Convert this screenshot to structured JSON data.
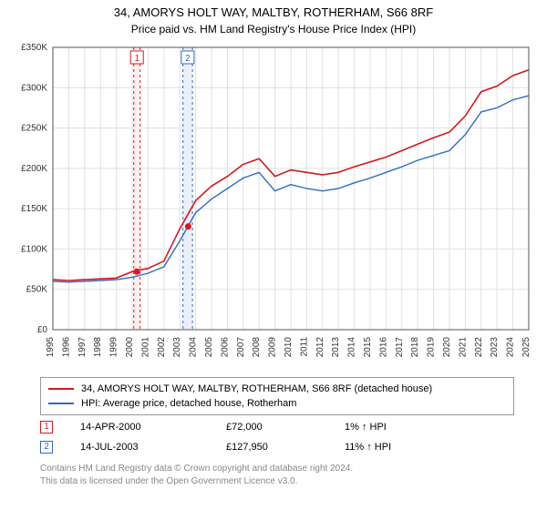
{
  "title_line1": "34, AMORYS HOLT WAY, MALTBY, ROTHERHAM, S66 8RF",
  "title_line2": "Price paid vs. HM Land Registry's House Price Index (HPI)",
  "chart": {
    "type": "line",
    "x_years": [
      1995,
      1996,
      1997,
      1998,
      1999,
      2000,
      2001,
      2002,
      2003,
      2004,
      2005,
      2006,
      2007,
      2008,
      2009,
      2010,
      2011,
      2012,
      2013,
      2014,
      2015,
      2016,
      2017,
      2018,
      2019,
      2020,
      2021,
      2022,
      2023,
      2024,
      2025
    ],
    "ylim": [
      0,
      350000
    ],
    "ytick_step": 50000,
    "y_labels": [
      "£0",
      "£50K",
      "£100K",
      "£150K",
      "£200K",
      "£250K",
      "£300K",
      "£350K"
    ],
    "background_color": "#ffffff",
    "grid_color": "#e0e0e0",
    "axis_color": "#555555",
    "tick_font_size": 10,
    "series": [
      {
        "name": "34, AMORYS HOLT WAY, MALTBY, ROTHERHAM, S66 8RF (detached house)",
        "color": "#d6191e",
        "line_width": 1.6,
        "data": [
          [
            1995,
            62000
          ],
          [
            1996,
            61000
          ],
          [
            1997,
            62000
          ],
          [
            1998,
            63000
          ],
          [
            1999,
            64000
          ],
          [
            2000,
            72000
          ],
          [
            2001,
            76000
          ],
          [
            2002,
            85000
          ],
          [
            2003,
            125000
          ],
          [
            2004,
            160000
          ],
          [
            2005,
            178000
          ],
          [
            2006,
            190000
          ],
          [
            2007,
            205000
          ],
          [
            2008,
            212000
          ],
          [
            2009,
            190000
          ],
          [
            2010,
            198000
          ],
          [
            2011,
            195000
          ],
          [
            2012,
            192000
          ],
          [
            2013,
            195000
          ],
          [
            2014,
            202000
          ],
          [
            2015,
            208000
          ],
          [
            2016,
            214000
          ],
          [
            2017,
            222000
          ],
          [
            2018,
            230000
          ],
          [
            2019,
            238000
          ],
          [
            2020,
            245000
          ],
          [
            2021,
            265000
          ],
          [
            2022,
            295000
          ],
          [
            2023,
            302000
          ],
          [
            2024,
            315000
          ],
          [
            2025,
            322000
          ]
        ]
      },
      {
        "name": "HPI: Average price, detached house, Rotherham",
        "color": "#3169c6",
        "line_width": 1.4,
        "data": [
          [
            1995,
            60000
          ],
          [
            1996,
            59000
          ],
          [
            1997,
            60000
          ],
          [
            1998,
            61000
          ],
          [
            1999,
            62000
          ],
          [
            2000,
            65000
          ],
          [
            2001,
            70000
          ],
          [
            2002,
            78000
          ],
          [
            2003,
            110000
          ],
          [
            2004,
            145000
          ],
          [
            2005,
            162000
          ],
          [
            2006,
            175000
          ],
          [
            2007,
            188000
          ],
          [
            2008,
            195000
          ],
          [
            2009,
            172000
          ],
          [
            2010,
            180000
          ],
          [
            2011,
            175000
          ],
          [
            2012,
            172000
          ],
          [
            2013,
            175000
          ],
          [
            2014,
            182000
          ],
          [
            2015,
            188000
          ],
          [
            2016,
            195000
          ],
          [
            2017,
            202000
          ],
          [
            2018,
            210000
          ],
          [
            2019,
            216000
          ],
          [
            2020,
            222000
          ],
          [
            2021,
            242000
          ],
          [
            2022,
            270000
          ],
          [
            2023,
            275000
          ],
          [
            2024,
            285000
          ],
          [
            2025,
            290000
          ]
        ]
      }
    ],
    "bands": [
      {
        "x_start": 2000.1,
        "x_end": 2000.5,
        "fill": "#fdeeee",
        "border_color": "#d6191e",
        "border_dash": "3,3"
      },
      {
        "x_start": 2003.2,
        "x_end": 2003.8,
        "fill": "#eaeff8",
        "border_color": "#3169c6",
        "border_dash": "3,3"
      }
    ],
    "sale_points": [
      {
        "x": 2000.29,
        "y": 72000,
        "color": "#d6191e"
      },
      {
        "x": 2003.53,
        "y": 127950,
        "color": "#d6191e"
      }
    ],
    "callouts": [
      {
        "x": 2000.3,
        "label": "1",
        "border_color": "#d6191e"
      },
      {
        "x": 2003.5,
        "label": "2",
        "border_color": "#3169c6"
      }
    ]
  },
  "legend": {
    "rows": [
      {
        "color": "#d6191e",
        "label": "34, AMORYS HOLT WAY, MALTBY, ROTHERHAM, S66 8RF (detached house)"
      },
      {
        "color": "#3169c6",
        "label": "HPI: Average price, detached house, Rotherham"
      }
    ]
  },
  "markers": [
    {
      "num": "1",
      "border_color": "#d6191e",
      "date": "14-APR-2000",
      "price": "£72,000",
      "hpi": "1% ↑ HPI"
    },
    {
      "num": "2",
      "border_color": "#3169c6",
      "date": "14-JUL-2003",
      "price": "£127,950",
      "hpi": "11% ↑ HPI"
    }
  ],
  "footer_line1": "Contains HM Land Registry data © Crown copyright and database right 2024.",
  "footer_line2": "This data is licensed under the Open Government Licence v3.0."
}
